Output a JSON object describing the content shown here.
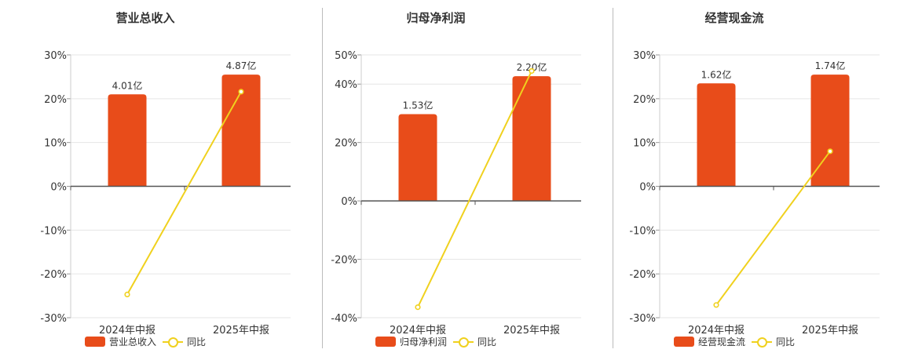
{
  "colors": {
    "bar": "#e84c1a",
    "line": "#f0d11e",
    "grid": "#e6e6e6",
    "axis": "#555555"
  },
  "legend_line_label": "同比",
  "chart_data": [
    {
      "type": "bar",
      "title": "营业总收入",
      "categories": [
        "2024年中报",
        "2025年中报"
      ],
      "series": [
        {
          "name": "营业总收入",
          "type": "bar",
          "values": [
            21,
            25.5
          ],
          "labels": [
            "4.01亿",
            "4.87亿"
          ]
        },
        {
          "name": "同比",
          "type": "line",
          "values": [
            -24.7,
            21.6
          ]
        }
      ],
      "ylim": [
        -30,
        30
      ],
      "yticks": [
        30,
        20,
        10,
        0,
        -10,
        -20,
        -30
      ],
      "tick_format": "percent",
      "grid": true,
      "legend": "bottom"
    },
    {
      "type": "bar",
      "title": "归母净利润",
      "categories": [
        "2024年中报",
        "2025年中报"
      ],
      "series": [
        {
          "name": "归母净利润",
          "type": "bar",
          "values": [
            29.7,
            42.7
          ],
          "labels": [
            "1.53亿",
            "2.20亿"
          ]
        },
        {
          "name": "同比",
          "type": "line",
          "values": [
            -36.4,
            44.5
          ]
        }
      ],
      "ylim": [
        -40,
        50
      ],
      "yticks": [
        50,
        40,
        20,
        0,
        -20,
        -40
      ],
      "tick_format": "percent",
      "grid": true,
      "legend": "bottom"
    },
    {
      "type": "bar",
      "title": "经营现金流",
      "categories": [
        "2024年中报",
        "2025年中报"
      ],
      "series": [
        {
          "name": "经营现金流",
          "type": "bar",
          "values": [
            23.5,
            25.5
          ],
          "labels": [
            "1.62亿",
            "1.74亿"
          ]
        },
        {
          "name": "同比",
          "type": "line",
          "values": [
            -27.1,
            8
          ]
        }
      ],
      "ylim": [
        -30,
        30
      ],
      "yticks": [
        30,
        20,
        10,
        0,
        -10,
        -20,
        -30
      ],
      "tick_format": "percent",
      "grid": true,
      "legend": "bottom"
    }
  ]
}
